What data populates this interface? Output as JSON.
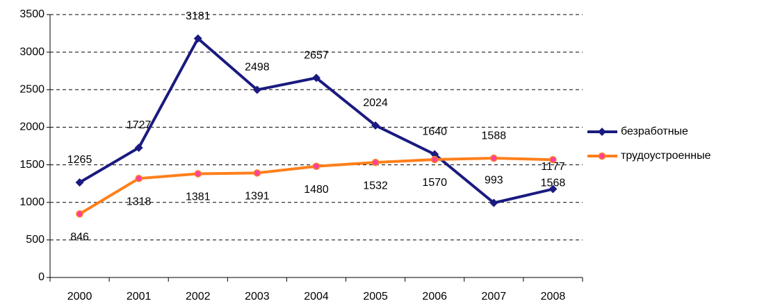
{
  "chart_data": {
    "type": "line",
    "categories": [
      "2000",
      "2001",
      "2002",
      "2003",
      "2004",
      "2005",
      "2006",
      "2007",
      "2008"
    ],
    "series": [
      {
        "name": "безработные",
        "color": "#1a1a80",
        "values": [
          1265,
          1727,
          3181,
          2498,
          2657,
          2024,
          1640,
          993,
          1177
        ]
      },
      {
        "name": "трудоустроенные",
        "color": "#ff7f1a",
        "values": [
          846,
          1318,
          1381,
          1391,
          1480,
          1532,
          1570,
          1588,
          1568
        ]
      }
    ],
    "ylim": [
      0,
      3500
    ],
    "yticks": [
      0,
      500,
      1000,
      1500,
      2000,
      2500,
      3000,
      3500
    ],
    "grid": true,
    "legend": "right"
  }
}
